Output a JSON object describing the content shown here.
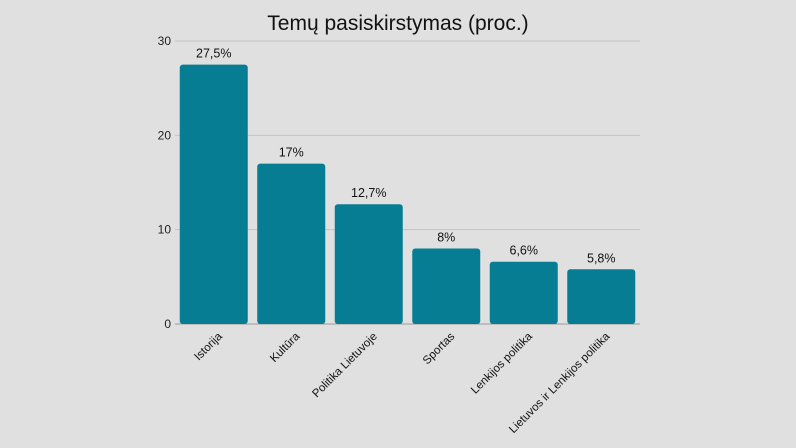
{
  "chart_data": {
    "type": "bar",
    "title": "Temų pasiskirstymas (proc.)",
    "categories": [
      "Istorija",
      "Kultūra",
      "Politika Lietuvoje",
      "Sportas",
      "Lenkijos politika",
      "Lietuvos ir Lenkijos politika"
    ],
    "values": [
      27.5,
      17,
      12.7,
      8,
      6.6,
      5.8
    ],
    "data_labels": [
      "27,5%",
      "17%",
      "12,7%",
      "8%",
      "6,6%",
      "5,8%"
    ],
    "yticks": [
      0,
      10,
      20,
      30
    ],
    "ylim": [
      0,
      30
    ],
    "grid": true,
    "legend": "none",
    "bar_color": "#077d93",
    "grid_color": "#c4c4c4",
    "background": "#e0e0e0"
  }
}
